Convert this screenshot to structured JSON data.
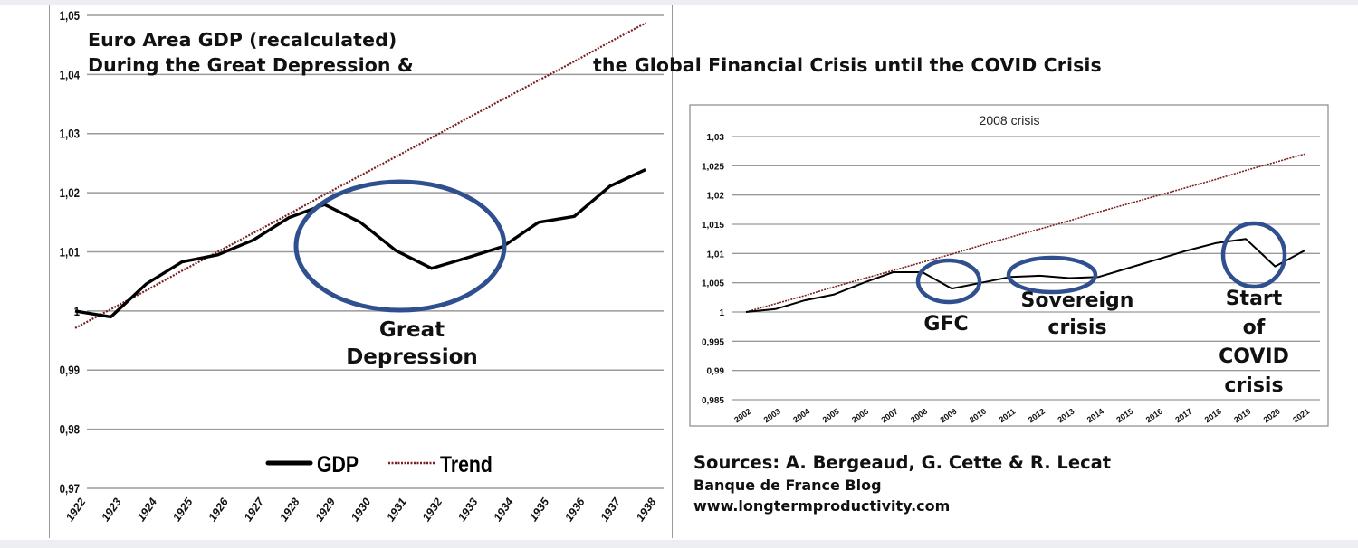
{
  "title": {
    "line1": "Euro Area GDP (recalculated)",
    "line2_left": "During the Great Depression &",
    "line2_right": "the Global Financial Crisis until the COVID Crisis"
  },
  "left_chart": {
    "y_ticks": [
      "1,05",
      "1,04",
      "1,03",
      "1,02",
      "1,01",
      "1",
      "0,99",
      "0,98",
      "0,97"
    ],
    "x_ticks": [
      "1922",
      "1923",
      "1924",
      "1925",
      "1926",
      "1927",
      "1928",
      "1929",
      "1930",
      "1931",
      "1932",
      "1933",
      "1934",
      "1935",
      "1936",
      "1937",
      "1938"
    ],
    "legend": {
      "gdp": "GDP",
      "trend": "Trend"
    },
    "annotation": {
      "line1": "Great",
      "line2": "Depression"
    }
  },
  "right_chart": {
    "title": "2008 crisis",
    "y_ticks": [
      "1,03",
      "1,025",
      "1,02",
      "1,015",
      "1,01",
      "1,005",
      "1",
      "0,995",
      "0,99",
      "0,985"
    ],
    "x_ticks": [
      "2002",
      "2003",
      "2004",
      "2005",
      "2006",
      "2007",
      "2008",
      "2009",
      "2010",
      "2011",
      "2012",
      "2013",
      "2014",
      "2015",
      "2016",
      "2017",
      "2018",
      "2019",
      "2020",
      "2021"
    ],
    "annotations": {
      "gfc": "GFC",
      "sovereign_line1": "Sovereign",
      "sovereign_line2": "crisis",
      "covid_line1": "Start",
      "covid_line2": "of",
      "covid_line3": "COVID",
      "covid_line4": "crisis"
    }
  },
  "sources": {
    "line1": "Sources: A. Bergeaud, G. Cette & R. Lecat",
    "line2": "Banque de France Blog",
    "line3": "www.longtermproductivity.com"
  },
  "colors": {
    "gdp_line": "#000000",
    "trend_line": "#7a1f1f",
    "ellipse": "#2f4f8f",
    "grid": "#9a9a9a"
  },
  "chart_data": [
    {
      "type": "line",
      "title": "Euro Area GDP (recalculated) During the Great Depression",
      "xlabel": "",
      "ylabel": "",
      "ylim": [
        0.97,
        1.05
      ],
      "grid": true,
      "legend_position": "bottom",
      "x": [
        1922,
        1923,
        1924,
        1925,
        1926,
        1927,
        1928,
        1929,
        1930,
        1931,
        1932,
        1933,
        1934,
        1935,
        1936,
        1937,
        1938
      ],
      "series": [
        {
          "name": "GDP",
          "style": "solid",
          "values": [
            1.0,
            0.999,
            1.0046,
            1.0083,
            1.0095,
            1.012,
            1.0158,
            1.018,
            1.015,
            1.0102,
            1.0072,
            1.009,
            1.0109,
            1.015,
            1.016,
            1.0211,
            1.0239
          ]
        },
        {
          "name": "Trend",
          "style": "dotted",
          "values": [
            0.9971,
            1.0003,
            1.0035,
            1.0068,
            1.01,
            1.0132,
            1.0164,
            1.0197,
            1.0229,
            1.0261,
            1.0293,
            1.0326,
            1.0358,
            1.039,
            1.0422,
            1.0455,
            1.0487
          ]
        }
      ],
      "annotations": [
        {
          "text": "Great Depression",
          "target_x": [
            1929,
            1934
          ]
        }
      ]
    },
    {
      "type": "line",
      "title": "2008 crisis",
      "xlabel": "",
      "ylabel": "",
      "ylim": [
        0.985,
        1.03
      ],
      "grid": true,
      "x": [
        2002,
        2003,
        2004,
        2005,
        2006,
        2007,
        2008,
        2009,
        2010,
        2011,
        2012,
        2013,
        2014,
        2015,
        2016,
        2017,
        2018,
        2019,
        2020,
        2021
      ],
      "series": [
        {
          "name": "GDP",
          "style": "solid",
          "values": [
            1.0,
            1.0005,
            1.002,
            1.003,
            1.005,
            1.0068,
            1.0068,
            1.004,
            1.005,
            1.006,
            1.0062,
            1.0058,
            1.006,
            1.0075,
            1.009,
            1.0105,
            1.0118,
            1.0125,
            1.0078,
            1.0105
          ]
        },
        {
          "name": "Trend",
          "style": "dotted",
          "values": [
            1.0,
            1.0014,
            1.0028,
            1.0043,
            1.0057,
            1.0071,
            1.0085,
            1.0099,
            1.0114,
            1.0128,
            1.0142,
            1.0156,
            1.0171,
            1.0185,
            1.0199,
            1.0213,
            1.0227,
            1.0242,
            1.0256,
            1.027
          ]
        }
      ],
      "annotations": [
        {
          "text": "GFC",
          "target_x": [
            2008,
            2010
          ]
        },
        {
          "text": "Sovereign crisis",
          "target_x": [
            2011,
            2014
          ]
        },
        {
          "text": "Start of COVID crisis",
          "target_x": [
            2019,
            2021
          ]
        }
      ]
    }
  ]
}
